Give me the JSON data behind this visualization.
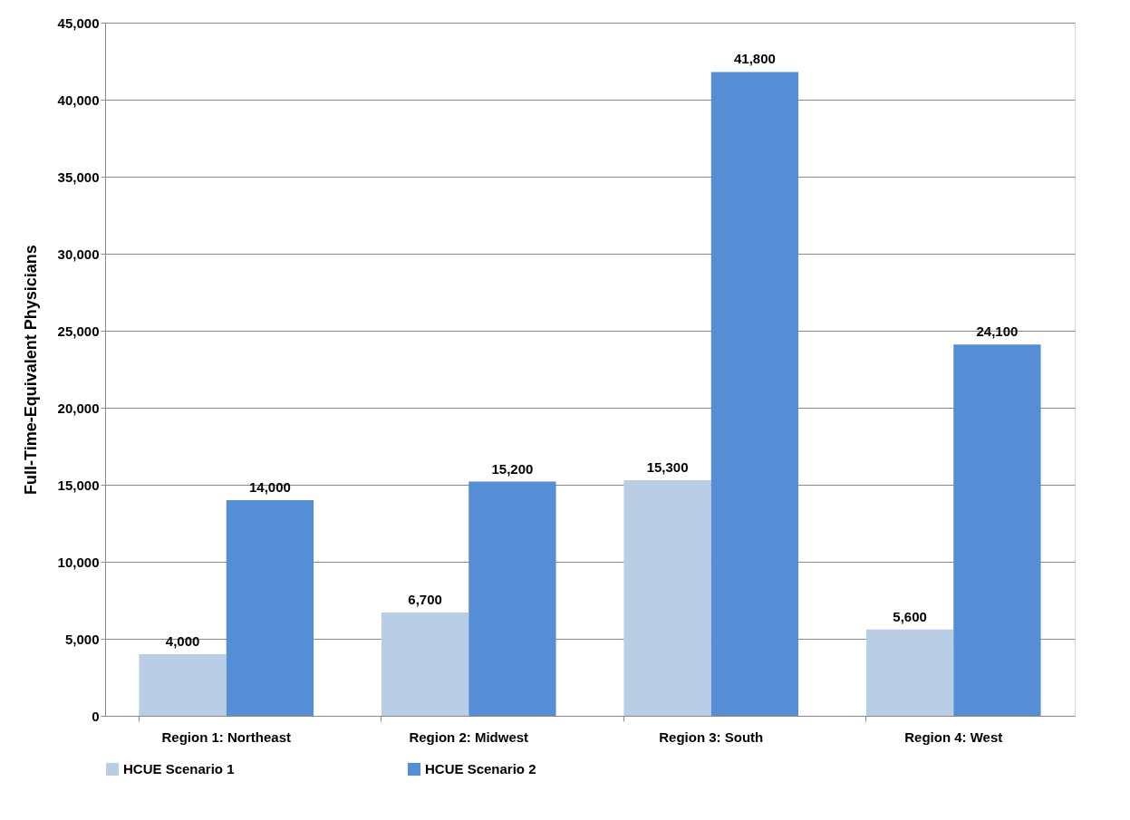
{
  "chart_data": {
    "type": "bar",
    "ylabel": "Full-Time-Equivalent Physicians",
    "categories": [
      "Region 1: Northeast",
      "Region 2: Midwest",
      "Region 3: South",
      "Region 4: West"
    ],
    "series": [
      {
        "name": "HCUE Scenario 1",
        "color": "#b9cde5",
        "values": [
          4000,
          6700,
          15300,
          5600
        ],
        "value_labels": [
          "4,000",
          "6,700",
          "15,300",
          "5,600"
        ]
      },
      {
        "name": "HCUE Scenario 2",
        "color": "#558ed5",
        "values": [
          14000,
          15200,
          41800,
          24100
        ],
        "value_labels": [
          "14,000",
          "15,200",
          "41,800",
          "24,100"
        ]
      }
    ],
    "ylim": [
      0,
      45000
    ],
    "yticks": [
      0,
      {
        "value": 5000,
        "label": "5,000"
      },
      {
        "value": 10000,
        "label": "10,000"
      },
      {
        "value": 15000,
        "label": "15,000"
      },
      {
        "value": 20000,
        "label": "20,000"
      },
      {
        "value": 25000,
        "label": "25,000"
      },
      {
        "value": 30000,
        "label": "30,000"
      },
      {
        "value": 35000,
        "label": "35,000"
      },
      {
        "value": 40000,
        "label": "40,000"
      },
      {
        "value": 45000,
        "label": "45,000"
      }
    ],
    "grid": "y",
    "legend": "bottom"
  }
}
